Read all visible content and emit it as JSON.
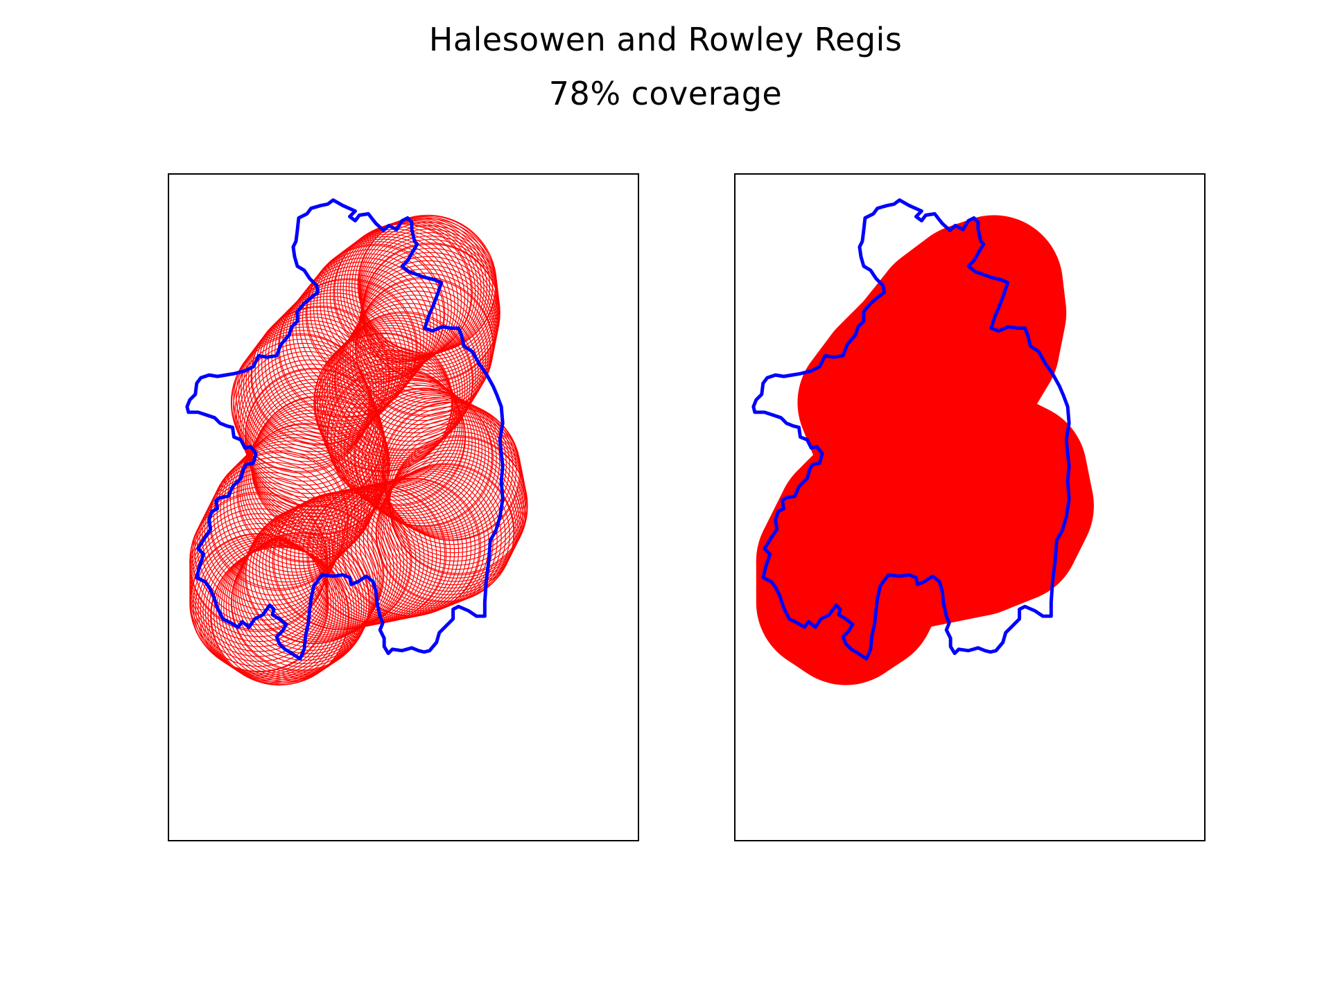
{
  "figure": {
    "title": "Halesowen and Rowley Regis",
    "subtitle": "78% coverage"
  },
  "colors": {
    "boundary": "#0000ff",
    "coverage": "#ff0000",
    "frame": "#000000"
  },
  "panels": [
    {
      "name": "circle-outlines",
      "style": "outline"
    },
    {
      "name": "coverage-union",
      "style": "filled"
    }
  ]
}
